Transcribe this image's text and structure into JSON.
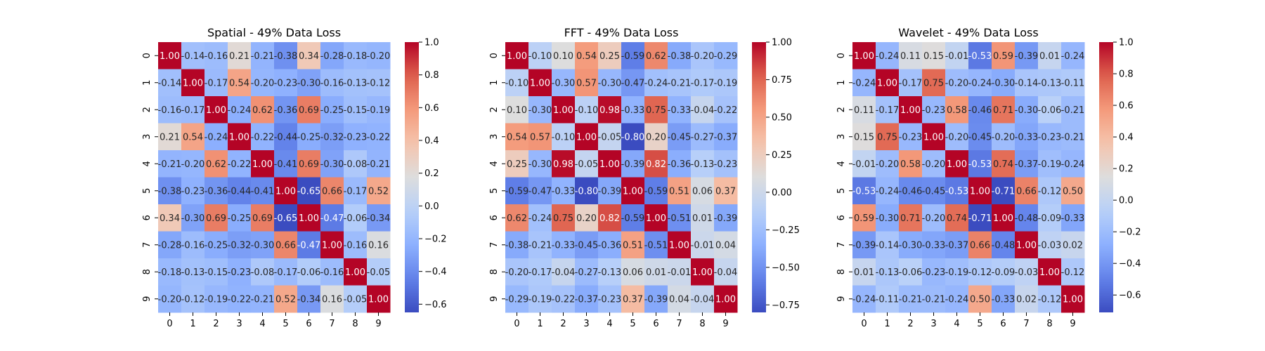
{
  "chart_data": [
    {
      "type": "heatmap",
      "title": "Spatial - 49% Data Loss",
      "x_categories": [
        "0",
        "1",
        "2",
        "3",
        "4",
        "5",
        "6",
        "7",
        "8",
        "9"
      ],
      "y_categories": [
        "0",
        "1",
        "2",
        "3",
        "4",
        "5",
        "6",
        "7",
        "8",
        "9"
      ],
      "colormap": "coolwarm",
      "vmin": -0.65,
      "vmax": 1.0,
      "colorbar_ticks": [
        -0.6,
        -0.4,
        -0.2,
        0.0,
        0.2,
        0.4,
        0.6,
        0.8,
        1.0
      ],
      "colorbar_tick_labels": [
        "−0.6",
        "−0.4",
        "−0.2",
        "0.0",
        "0.2",
        "0.4",
        "0.6",
        "0.8",
        "1.0"
      ],
      "values": [
        [
          1.0,
          -0.14,
          -0.16,
          0.21,
          -0.21,
          -0.38,
          0.34,
          -0.28,
          -0.18,
          -0.2
        ],
        [
          -0.14,
          1.0,
          -0.17,
          0.54,
          -0.2,
          -0.23,
          -0.3,
          -0.16,
          -0.13,
          -0.12
        ],
        [
          -0.16,
          -0.17,
          1.0,
          -0.24,
          0.62,
          -0.36,
          0.69,
          -0.25,
          -0.15,
          -0.19
        ],
        [
          0.21,
          0.54,
          -0.24,
          1.0,
          -0.22,
          -0.44,
          -0.25,
          -0.32,
          -0.23,
          -0.22
        ],
        [
          -0.21,
          -0.2,
          0.62,
          -0.22,
          1.0,
          -0.41,
          0.69,
          -0.3,
          -0.08,
          -0.21
        ],
        [
          -0.38,
          -0.23,
          -0.36,
          -0.44,
          -0.41,
          1.0,
          -0.65,
          0.66,
          -0.17,
          0.52
        ],
        [
          0.34,
          -0.3,
          0.69,
          -0.25,
          0.69,
          -0.65,
          1.0,
          -0.47,
          -0.06,
          -0.34
        ],
        [
          -0.28,
          -0.16,
          -0.25,
          -0.32,
          -0.3,
          0.66,
          -0.47,
          1.0,
          -0.16,
          0.16
        ],
        [
          -0.18,
          -0.13,
          -0.15,
          -0.23,
          -0.08,
          -0.17,
          -0.06,
          -0.16,
          1.0,
          -0.05
        ],
        [
          -0.2,
          -0.12,
          -0.19,
          -0.22,
          -0.21,
          0.52,
          -0.34,
          0.16,
          -0.05,
          1.0
        ]
      ]
    },
    {
      "type": "heatmap",
      "title": "FFT - 49% Data Loss",
      "x_categories": [
        "0",
        "1",
        "2",
        "3",
        "4",
        "5",
        "6",
        "7",
        "8",
        "9"
      ],
      "y_categories": [
        "0",
        "1",
        "2",
        "3",
        "4",
        "5",
        "6",
        "7",
        "8",
        "9"
      ],
      "colormap": "coolwarm",
      "vmin": -0.8,
      "vmax": 1.0,
      "colorbar_ticks": [
        -0.75,
        -0.5,
        -0.25,
        0.0,
        0.25,
        0.5,
        0.75,
        1.0
      ],
      "colorbar_tick_labels": [
        "−0.75",
        "−0.50",
        "−0.25",
        "0.00",
        "0.25",
        "0.50",
        "0.75",
        "1.00"
      ],
      "values": [
        [
          1.0,
          -0.1,
          0.1,
          0.54,
          0.25,
          -0.59,
          0.62,
          -0.38,
          -0.2,
          -0.29
        ],
        [
          -0.1,
          1.0,
          -0.3,
          0.57,
          -0.3,
          -0.47,
          -0.24,
          -0.21,
          -0.17,
          -0.19
        ],
        [
          0.1,
          -0.3,
          1.0,
          -0.1,
          0.98,
          -0.33,
          0.75,
          -0.33,
          -0.04,
          -0.22
        ],
        [
          0.54,
          0.57,
          -0.1,
          1.0,
          -0.05,
          -0.8,
          0.2,
          -0.45,
          -0.27,
          -0.37
        ],
        [
          0.25,
          -0.3,
          0.98,
          -0.05,
          1.0,
          -0.39,
          0.82,
          -0.36,
          -0.13,
          -0.23
        ],
        [
          -0.59,
          -0.47,
          -0.33,
          -0.8,
          -0.39,
          1.0,
          -0.59,
          0.51,
          0.06,
          0.37
        ],
        [
          0.62,
          -0.24,
          0.75,
          0.2,
          0.82,
          -0.59,
          1.0,
          -0.51,
          0.01,
          -0.39
        ],
        [
          -0.38,
          -0.21,
          -0.33,
          -0.45,
          -0.36,
          0.51,
          -0.51,
          1.0,
          -0.01,
          0.04
        ],
        [
          -0.2,
          -0.17,
          -0.04,
          -0.27,
          -0.13,
          0.06,
          0.01,
          -0.01,
          1.0,
          -0.04
        ],
        [
          -0.29,
          -0.19,
          -0.22,
          -0.37,
          -0.23,
          0.37,
          -0.39,
          0.04,
          -0.04,
          1.0
        ]
      ]
    },
    {
      "type": "heatmap",
      "title": "Wavelet - 49% Data Loss",
      "x_categories": [
        "0",
        "1",
        "2",
        "3",
        "4",
        "5",
        "6",
        "7",
        "8",
        "9"
      ],
      "y_categories": [
        "0",
        "1",
        "2",
        "3",
        "4",
        "5",
        "6",
        "7",
        "8",
        "9"
      ],
      "colormap": "coolwarm",
      "vmin": -0.71,
      "vmax": 1.0,
      "colorbar_ticks": [
        -0.6,
        -0.4,
        -0.2,
        0.0,
        0.2,
        0.4,
        0.6,
        0.8,
        1.0
      ],
      "colorbar_tick_labels": [
        "−0.6",
        "−0.4",
        "−0.2",
        "0.0",
        "0.2",
        "0.4",
        "0.6",
        "0.8",
        "1.0"
      ],
      "values": [
        [
          1.0,
          -0.24,
          0.11,
          0.15,
          -0.01,
          -0.53,
          0.59,
          -0.39,
          0.01,
          -0.24
        ],
        [
          -0.24,
          1.0,
          -0.17,
          0.75,
          -0.2,
          -0.24,
          -0.3,
          -0.14,
          -0.13,
          -0.11
        ],
        [
          0.11,
          -0.17,
          1.0,
          -0.23,
          0.58,
          -0.46,
          0.71,
          -0.3,
          -0.06,
          -0.21
        ],
        [
          0.15,
          0.75,
          -0.23,
          1.0,
          -0.2,
          -0.45,
          -0.2,
          -0.33,
          -0.23,
          -0.21
        ],
        [
          -0.01,
          -0.2,
          0.58,
          -0.2,
          1.0,
          -0.53,
          0.74,
          -0.37,
          -0.19,
          -0.24
        ],
        [
          -0.53,
          -0.24,
          -0.46,
          -0.45,
          -0.53,
          1.0,
          -0.71,
          0.66,
          -0.12,
          0.5
        ],
        [
          0.59,
          -0.3,
          0.71,
          -0.2,
          0.74,
          -0.71,
          1.0,
          -0.48,
          -0.09,
          -0.33
        ],
        [
          -0.39,
          -0.14,
          -0.3,
          -0.33,
          -0.37,
          0.66,
          -0.48,
          1.0,
          -0.03,
          0.02
        ],
        [
          0.01,
          -0.13,
          -0.06,
          -0.23,
          -0.19,
          -0.12,
          -0.09,
          -0.03,
          1.0,
          -0.12
        ],
        [
          -0.24,
          -0.11,
          -0.21,
          -0.21,
          -0.24,
          0.5,
          -0.33,
          0.02,
          -0.12,
          1.0
        ]
      ]
    }
  ]
}
